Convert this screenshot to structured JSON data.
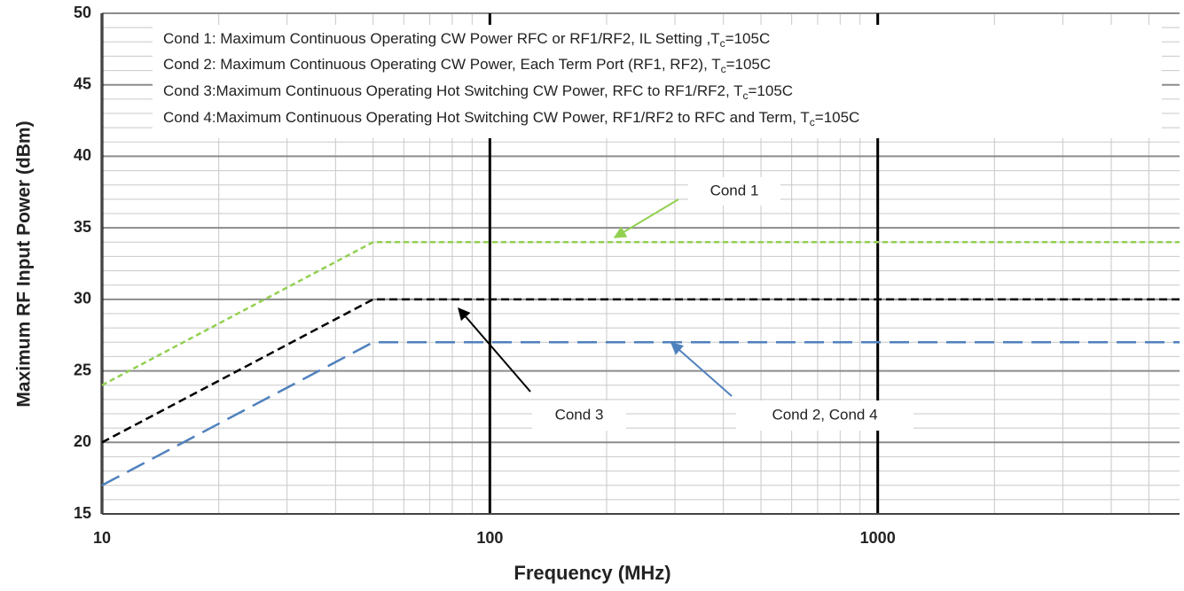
{
  "chart_data": {
    "type": "line",
    "xlabel": "Frequency (MHz)",
    "ylabel": "Maximum RF Input Power (dBm)",
    "xscale": "log",
    "xlim": [
      10,
      6000
    ],
    "xticks": [
      10,
      100,
      1000
    ],
    "ylim": [
      15,
      50
    ],
    "yticks": [
      15,
      20,
      25,
      30,
      35,
      40,
      45,
      50
    ],
    "grid": true,
    "minor_grid": true,
    "x": [
      10,
      50,
      6000
    ],
    "series": [
      {
        "name": "Cond 1",
        "color": "#92d050",
        "values": [
          24,
          34,
          34
        ]
      },
      {
        "name": "Cond 3",
        "color": "#000000",
        "values": [
          20,
          30,
          30
        ]
      },
      {
        "name": "Cond 2, Cond 4",
        "color": "#4f81bd",
        "values": [
          17,
          27,
          27
        ]
      }
    ],
    "notes": [
      {
        "text": "Cond 1: Maximum Continuous Operating CW Power RFC or RF1/RF2, IL Setting ,T",
        "sub": "c",
        "after": "=105C"
      },
      {
        "text": "Cond 2: Maximum Continuous Operating CW Power, Each Term Port (RF1, RF2), T",
        "sub": "c",
        "after": "=105C"
      },
      {
        "text": "Cond 3:Maximum Continuous Operating Hot Switching CW Power,  RFC to RF1/RF2,  T",
        "sub": "c",
        "after": "=105C"
      },
      {
        "text": "Cond 4:Maximum Continuous Operating Hot Switching CW Power,  RF1/RF2 to RFC and Term, T",
        "sub": "c",
        "after": "=105C"
      }
    ]
  }
}
